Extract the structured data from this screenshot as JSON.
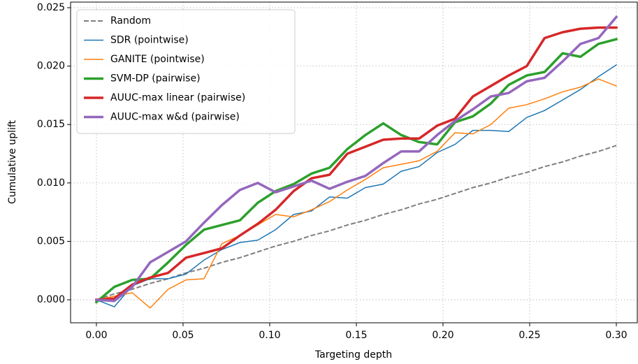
{
  "chart_data": {
    "type": "line",
    "xlabel": "Targeting depth",
    "ylabel": "Cumulative uplift",
    "x": [
      0,
      0.0103,
      0.0207,
      0.031,
      0.0414,
      0.0517,
      0.0621,
      0.0724,
      0.0828,
      0.0931,
      0.1034,
      0.1138,
      0.1241,
      0.1345,
      0.1448,
      0.1552,
      0.1655,
      0.1759,
      0.1862,
      0.1966,
      0.2069,
      0.2172,
      0.2276,
      0.2379,
      0.2483,
      0.2586,
      0.269,
      0.2793,
      0.2897,
      0.3
    ],
    "series": [
      {
        "name": "Random",
        "color": "#7f7f7f",
        "linewidth": 2,
        "dashed": true,
        "values": [
          0,
          0.0005,
          0.0009,
          0.0014,
          0.0018,
          0.0023,
          0.0027,
          0.0032,
          0.0036,
          0.0041,
          0.0046,
          0.005,
          0.0055,
          0.0059,
          0.0064,
          0.0068,
          0.0073,
          0.0077,
          0.0082,
          0.0086,
          0.0091,
          0.0096,
          0.01,
          0.0105,
          0.0109,
          0.0114,
          0.0118,
          0.0123,
          0.0127,
          0.0132
        ]
      },
      {
        "name": "SDR (pointwise)",
        "color": "#1f77b4",
        "linewidth": 1.5,
        "values": [
          0,
          -0.0006,
          0.0012,
          0.0018,
          0.0018,
          0.0022,
          0.0034,
          0.0043,
          0.0049,
          0.0051,
          0.006,
          0.0073,
          0.0076,
          0.0088,
          0.0087,
          0.0096,
          0.0099,
          0.011,
          0.0114,
          0.0126,
          0.0133,
          0.0145,
          0.0145,
          0.0144,
          0.0156,
          0.0162,
          0.0171,
          0.018,
          0.0191,
          0.0201
        ]
      },
      {
        "name": "GANITE (pointwise)",
        "color": "#ff7f0e",
        "linewidth": 1.5,
        "values": [
          0,
          0.0003,
          0.0006,
          -0.0007,
          0.0009,
          0.0017,
          0.0018,
          0.0048,
          0.0055,
          0.0064,
          0.0073,
          0.0071,
          0.0077,
          0.0084,
          0.0094,
          0.0103,
          0.0113,
          0.0116,
          0.0119,
          0.0127,
          0.0143,
          0.0142,
          0.015,
          0.0164,
          0.0167,
          0.0172,
          0.0178,
          0.0182,
          0.0189,
          0.0183
        ]
      },
      {
        "name": "SVM-DP (pairwise)",
        "color": "#2ca02c",
        "linewidth": 3.5,
        "values": [
          -0.0002,
          0.0011,
          0.0017,
          0.0018,
          0.0032,
          0.0047,
          0.006,
          0.0064,
          0.0068,
          0.0083,
          0.0093,
          0.0099,
          0.0108,
          0.0113,
          0.0129,
          0.0141,
          0.0151,
          0.0141,
          0.0135,
          0.0133,
          0.0152,
          0.0157,
          0.0168,
          0.0184,
          0.0192,
          0.0195,
          0.0211,
          0.0208,
          0.0219,
          0.0223
        ]
      },
      {
        "name": "AUUC-max linear (pairwise)",
        "color": "#d62728",
        "linewidth": 3.5,
        "values": [
          0,
          0.0001,
          0.0013,
          0.0019,
          0.0023,
          0.0036,
          0.004,
          0.0044,
          0.0055,
          0.0065,
          0.0077,
          0.0093,
          0.0104,
          0.0107,
          0.0125,
          0.0131,
          0.0137,
          0.0138,
          0.0138,
          0.0149,
          0.0155,
          0.0174,
          0.0183,
          0.0192,
          0.02,
          0.0224,
          0.0229,
          0.0232,
          0.0233,
          0.0233
        ]
      },
      {
        "name": "AUUC-max w&d (pairwise)",
        "color": "#9467bd",
        "linewidth": 3.5,
        "values": [
          0,
          -0.0001,
          0.0011,
          0.0032,
          0.0041,
          0.005,
          0.0066,
          0.0081,
          0.0094,
          0.01,
          0.0092,
          0.0097,
          0.0102,
          0.0095,
          0.0101,
          0.0106,
          0.0117,
          0.0127,
          0.0127,
          0.0141,
          0.0153,
          0.0163,
          0.0174,
          0.0177,
          0.0187,
          0.019,
          0.0204,
          0.0219,
          0.0224,
          0.0242
        ]
      }
    ],
    "xlim": [
      -0.0149,
      0.3121
    ],
    "ylim": [
      -0.00197,
      0.02548
    ],
    "xticks": [
      {
        "value": 0,
        "label": "0.00"
      },
      {
        "value": 0.05,
        "label": "0.05"
      },
      {
        "value": 0.1,
        "label": "0.10"
      },
      {
        "value": 0.15,
        "label": "0.15"
      },
      {
        "value": 0.2,
        "label": "0.20"
      },
      {
        "value": 0.25,
        "label": "0.25"
      },
      {
        "value": 0.3,
        "label": "0.30"
      }
    ],
    "yticks": [
      {
        "value": 0,
        "label": "0.000"
      },
      {
        "value": 0.005,
        "label": "0.005"
      },
      {
        "value": 0.01,
        "label": "0.010"
      },
      {
        "value": 0.015,
        "label": "0.015"
      },
      {
        "value": 0.02,
        "label": "0.020"
      },
      {
        "value": 0.025,
        "label": "0.025"
      }
    ],
    "grid": true,
    "legend": "upper left"
  }
}
